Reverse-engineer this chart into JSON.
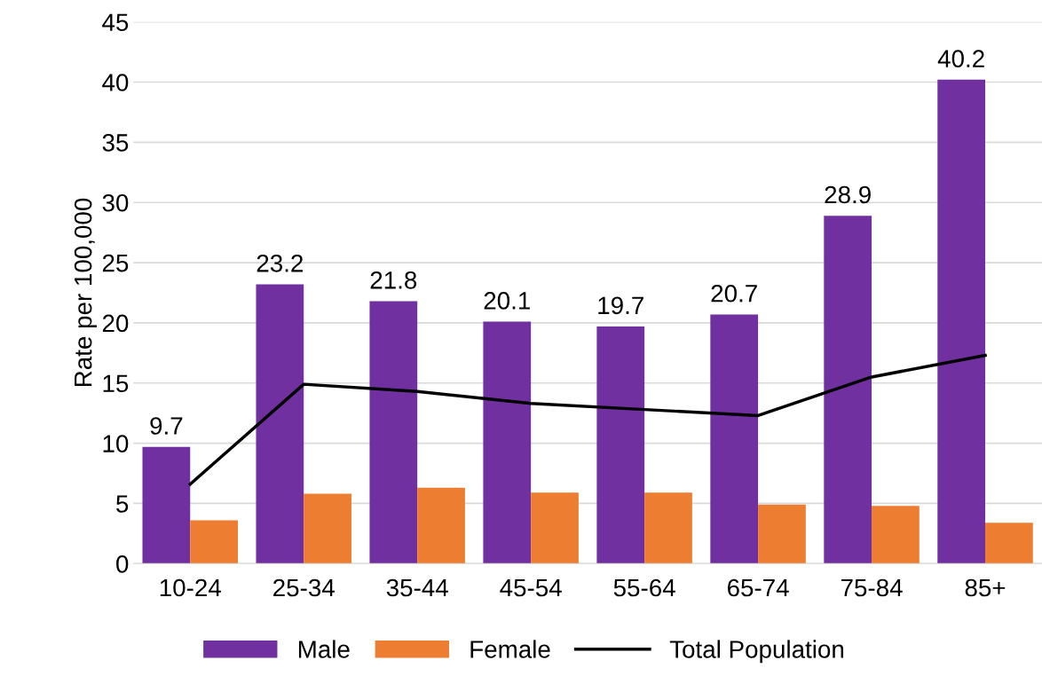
{
  "chart_data": {
    "type": "bar",
    "ylabel": "Rate per 100,000",
    "categories": [
      "10-24",
      "25-34",
      "35-44",
      "45-54",
      "55-64",
      "65-74",
      "75-84",
      "85+"
    ],
    "series": [
      {
        "name": "Male",
        "color": "#7030a0",
        "values": [
          9.7,
          23.2,
          21.8,
          20.1,
          19.7,
          20.7,
          28.9,
          40.2
        ],
        "value_labels": [
          "9.7",
          "23.2",
          "21.8",
          "20.1",
          "19.7",
          "20.7",
          "28.9",
          "40.2"
        ]
      },
      {
        "name": "Female",
        "color": "#ed7d31",
        "values": [
          3.6,
          5.8,
          6.3,
          5.9,
          5.9,
          4.9,
          4.8,
          3.4
        ]
      },
      {
        "name": "Total Population",
        "type": "line",
        "color": "#000000",
        "values": [
          6.6,
          14.9,
          14.3,
          13.3,
          12.8,
          12.3,
          15.5,
          17.3
        ]
      }
    ],
    "ylim": [
      0,
      45
    ],
    "yticks": [
      0,
      5,
      10,
      15,
      20,
      25,
      30,
      35,
      40,
      45
    ],
    "grid": "y",
    "legend": "bottom"
  }
}
